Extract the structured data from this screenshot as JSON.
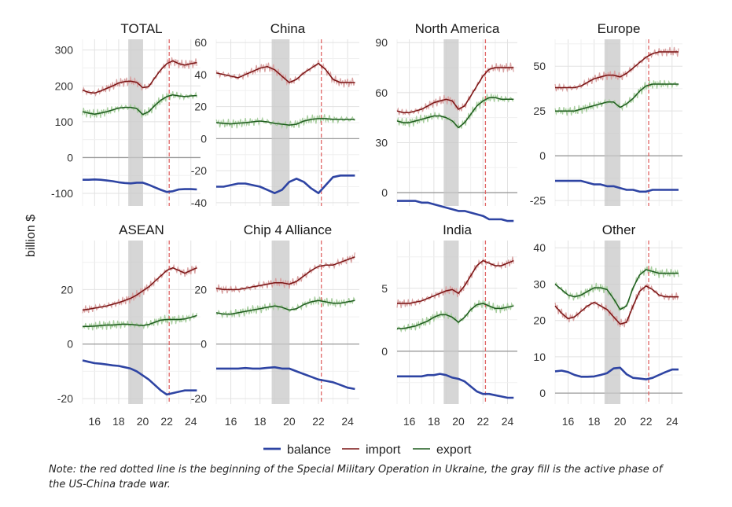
{
  "figure": {
    "ylabel": "billion $",
    "note": "Note: the red dotted line is the beginning of the Special Military Operation in Ukraine, the gray fill is the active phase of the US-China trade war."
  },
  "colors": {
    "balance": "#2e44a3",
    "import": "#7a1414",
    "import_raw": "#d9a3a3",
    "export": "#1e5c1e",
    "export_raw": "#a9cfa0",
    "event_line": "#e06666",
    "shade": "#c8c8c8",
    "zero": "#9a9a9a"
  },
  "chart_data": {
    "type": "line",
    "xlabel": "",
    "ylabel": "billion $",
    "x_ticks": [
      16,
      18,
      20,
      22,
      24
    ],
    "x_range": [
      15,
      24.8
    ],
    "trade_war_period": [
      18.8,
      20.0
    ],
    "event_line_x": 22.2,
    "legend": [
      "balance",
      "import",
      "export"
    ],
    "legend_position": "bottom",
    "grid": true,
    "panels": [
      {
        "title": "TOTAL",
        "yticks": [
          300,
          200,
          100,
          0,
          -100
        ],
        "ylim": [
          -135,
          330
        ],
        "x": [
          15,
          15.5,
          16,
          16.5,
          17,
          17.5,
          18,
          18.5,
          19,
          19.5,
          20,
          20.5,
          21,
          21.5,
          22,
          22.5,
          23,
          23.5,
          24,
          24.5
        ],
        "series": [
          {
            "name": "import",
            "values": [
              188,
              182,
              180,
              186,
              193,
              200,
              208,
              212,
              213,
              210,
              195,
              198,
              222,
              245,
              262,
              270,
              262,
              258,
              262,
              265
            ]
          },
          {
            "name": "export",
            "values": [
              128,
              124,
              121,
              124,
              128,
              133,
              138,
              140,
              140,
              137,
              120,
              128,
              145,
              160,
              170,
              175,
              172,
              170,
              172,
              173
            ]
          },
          {
            "name": "balance",
            "values": [
              -62,
              -62,
              -61,
              -62,
              -64,
              -66,
              -69,
              -71,
              -72,
              -70,
              -70,
              -76,
              -83,
              -90,
              -96,
              -94,
              -89,
              -88,
              -88,
              -89
            ]
          }
        ]
      },
      {
        "title": "China",
        "yticks": [
          60,
          40,
          20,
          0,
          -20,
          -40
        ],
        "ylim": [
          -42,
          62
        ],
        "x": [
          15,
          15.5,
          16,
          16.5,
          17,
          17.5,
          18,
          18.5,
          19,
          19.5,
          20,
          20.5,
          21,
          21.5,
          22,
          22.5,
          23,
          23.5,
          24,
          24.5
        ],
        "series": [
          {
            "name": "import",
            "values": [
              41,
              40,
              39,
              38,
              40,
              42,
              44,
              45,
              43,
              39,
              35,
              37,
              41,
              44,
              47,
              43,
              37,
              35,
              35,
              35
            ]
          },
          {
            "name": "export",
            "values": [
              10,
              9.5,
              9.2,
              9.6,
              10,
              10.5,
              11,
              10.5,
              9.5,
              9,
              8.5,
              9,
              11,
              12,
              12.5,
              12.5,
              12,
              12,
              12,
              12
            ]
          },
          {
            "name": "balance",
            "values": [
              -30,
              -30,
              -29,
              -28,
              -28,
              -29,
              -30,
              -32,
              -34,
              -32,
              -27,
              -25,
              -27,
              -31,
              -34,
              -29,
              -24,
              -23,
              -23,
              -23
            ]
          }
        ]
      },
      {
        "title": "North America",
        "yticks": [
          90,
          60,
          30,
          0
        ],
        "ylim": [
          -8,
          92
        ],
        "x": [
          15,
          15.5,
          16,
          16.5,
          17,
          17.5,
          18,
          18.5,
          19,
          19.5,
          20,
          20.5,
          21,
          21.5,
          22,
          22.5,
          23,
          23.5,
          24,
          24.5
        ],
        "series": [
          {
            "name": "import",
            "values": [
              49,
              48,
              48,
              49,
              50,
              52,
              54,
              55,
              56,
              55,
              50,
              52,
              58,
              64,
              70,
              74,
              75,
              75,
              75,
              75
            ]
          },
          {
            "name": "export",
            "values": [
              43,
              42,
              42,
              43,
              44,
              45,
              46,
              46,
              45,
              43,
              39,
              42,
              47,
              52,
              55,
              57,
              57,
              56,
              56,
              56
            ]
          },
          {
            "name": "balance",
            "values": [
              -5,
              -5,
              -5,
              -5,
              -6,
              -6,
              -7,
              -8,
              -9,
              -10,
              -11,
              -11,
              -12,
              -13,
              -14,
              -16,
              -16,
              -16,
              -17,
              -17
            ]
          }
        ]
      },
      {
        "title": "Europe",
        "yticks": [
          50,
          25,
          0,
          -25
        ],
        "ylim": [
          -28,
          65
        ],
        "x": [
          15,
          15.5,
          16,
          16.5,
          17,
          17.5,
          18,
          18.5,
          19,
          19.5,
          20,
          20.5,
          21,
          21.5,
          22,
          22.5,
          23,
          23.5,
          24,
          24.5
        ],
        "series": [
          {
            "name": "import",
            "values": [
              38,
              38,
              38,
              38,
              39,
              41,
              43,
              44,
              45,
              45,
              44,
              46,
              49,
              52,
              55,
              57,
              58,
              58,
              58,
              58
            ]
          },
          {
            "name": "export",
            "values": [
              25,
              25,
              25,
              25,
              26,
              27,
              28,
              29,
              30,
              30,
              27,
              29,
              32,
              36,
              39,
              40,
              40,
              40,
              40,
              40
            ]
          },
          {
            "name": "balance",
            "values": [
              -14,
              -14,
              -14,
              -14,
              -14,
              -15,
              -16,
              -16,
              -17,
              -17,
              -18,
              -19,
              -19,
              -20,
              -20,
              -19,
              -19,
              -19,
              -19,
              -19
            ]
          }
        ]
      },
      {
        "title": "ASEAN",
        "yticks": [
          20,
          0,
          -20
        ],
        "ylim": [
          -22,
          38
        ],
        "x": [
          15,
          15.5,
          16,
          16.5,
          17,
          17.5,
          18,
          18.5,
          19,
          19.5,
          20,
          20.5,
          21,
          21.5,
          22,
          22.5,
          23,
          23.5,
          24,
          24.5
        ],
        "series": [
          {
            "name": "import",
            "values": [
              12.5,
              12.8,
              13.2,
              13.6,
              14,
              14.6,
              15.2,
              16,
              16.8,
              18,
              19.5,
              21,
              23,
              25,
              27,
              28,
              27,
              26,
              27,
              28
            ]
          },
          {
            "name": "export",
            "values": [
              6.5,
              6.5,
              6.6,
              6.8,
              7,
              7,
              7.2,
              7.3,
              7.2,
              7,
              6.8,
              7.2,
              8,
              8.8,
              9,
              9,
              9,
              9.2,
              9.8,
              10.5
            ]
          },
          {
            "name": "balance",
            "values": [
              -6,
              -6.5,
              -7,
              -7.2,
              -7.5,
              -7.8,
              -8,
              -8.5,
              -9,
              -10,
              -11.5,
              -13,
              -15,
              -17,
              -18.5,
              -18,
              -17.5,
              -17,
              -17,
              -17
            ]
          }
        ]
      },
      {
        "title": "Chip 4 Alliance",
        "yticks": [
          20,
          0,
          -20
        ],
        "ylim": [
          -22,
          38
        ],
        "x": [
          15,
          15.5,
          16,
          16.5,
          17,
          17.5,
          18,
          18.5,
          19,
          19.5,
          20,
          20.5,
          21,
          21.5,
          22,
          22.5,
          23,
          23.5,
          24,
          24.5
        ],
        "series": [
          {
            "name": "import",
            "values": [
              20.5,
              20,
              20,
              20,
              20.5,
              21,
              21.5,
              22,
              22.5,
              22.5,
              22,
              23,
              25,
              27,
              28.5,
              29,
              29,
              30,
              31,
              32
            ]
          },
          {
            "name": "export",
            "values": [
              11.5,
              11,
              11,
              11.5,
              12,
              12.5,
              13,
              13.5,
              14,
              13.5,
              12.5,
              13,
              14.5,
              15.5,
              16,
              15.5,
              15,
              15,
              15.5,
              16
            ]
          },
          {
            "name": "balance",
            "values": [
              -9,
              -9,
              -9,
              -9,
              -8.8,
              -9,
              -9,
              -8.7,
              -8.5,
              -9,
              -9,
              -10,
              -11,
              -12,
              -13,
              -13.5,
              -14,
              -15,
              -16,
              -16.5
            ]
          }
        ]
      },
      {
        "title": "India",
        "yticks": [
          5,
          0
        ],
        "ylim": [
          -4.2,
          8.8
        ],
        "x": [
          15,
          15.5,
          16,
          16.5,
          17,
          17.5,
          18,
          18.5,
          19,
          19.5,
          20,
          20.5,
          21,
          21.5,
          22,
          22.5,
          23,
          23.5,
          24,
          24.5
        ],
        "series": [
          {
            "name": "import",
            "values": [
              3.8,
              3.8,
              3.8,
              3.9,
              4,
              4.2,
              4.4,
              4.6,
              4.8,
              4.9,
              4.6,
              5.2,
              6,
              6.8,
              7.2,
              7,
              6.8,
              6.8,
              7,
              7.2
            ]
          },
          {
            "name": "export",
            "values": [
              1.8,
              1.8,
              1.9,
              2,
              2.2,
              2.4,
              2.7,
              2.9,
              2.9,
              2.7,
              2.3,
              2.7,
              3.3,
              3.7,
              3.8,
              3.6,
              3.4,
              3.4,
              3.5,
              3.6
            ]
          },
          {
            "name": "balance",
            "values": [
              -2,
              -2,
              -2,
              -2,
              -2,
              -1.9,
              -1.9,
              -1.8,
              -1.9,
              -2.1,
              -2.2,
              -2.4,
              -2.8,
              -3.2,
              -3.4,
              -3.4,
              -3.5,
              -3.6,
              -3.7,
              -3.7
            ]
          }
        ]
      },
      {
        "title": "Other",
        "yticks": [
          40,
          30,
          20,
          10,
          0
        ],
        "ylim": [
          -3,
          42
        ],
        "x": [
          15,
          15.5,
          16,
          16.5,
          17,
          17.5,
          18,
          18.5,
          19,
          19.5,
          20,
          20.5,
          21,
          21.5,
          22,
          22.5,
          23,
          23.5,
          24,
          24.5
        ],
        "series": [
          {
            "name": "import",
            "values": [
              24,
              22,
              20.5,
              21,
              22.5,
              24,
              25,
              24,
              23,
              21,
              19,
              19.5,
              24,
              28,
              29.5,
              28.5,
              27,
              26.5,
              26.5,
              26.5
            ]
          },
          {
            "name": "export",
            "values": [
              30,
              28.5,
              27,
              26.5,
              27,
              28,
              29,
              29,
              28.5,
              26,
              23,
              24,
              29,
              32.5,
              34,
              33.5,
              33,
              33,
              33,
              33
            ]
          },
          {
            "name": "balance",
            "values": [
              6,
              6.2,
              5.8,
              5,
              4.5,
              4.5,
              4.6,
              5,
              5.5,
              6.8,
              7,
              5.2,
              4.2,
              4,
              3.8,
              4.2,
              5,
              5.8,
              6.5,
              6.5
            ]
          }
        ]
      }
    ]
  }
}
